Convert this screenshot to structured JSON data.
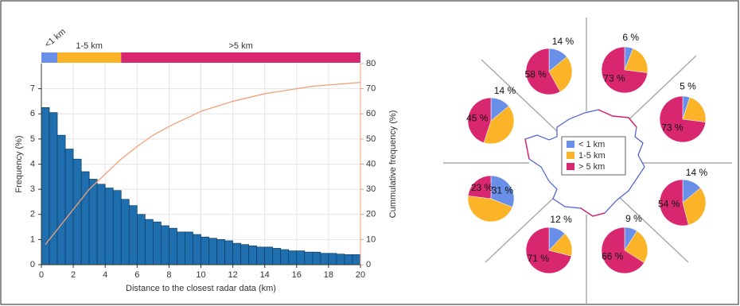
{
  "chart_data": [
    {
      "type": "histogram",
      "xlabel": "Distance to the closest radar data (km)",
      "ylabel": "Frequency (%)",
      "y2label": "Cummulative frequency (%)",
      "bins": [
        0,
        0.5,
        1,
        1.5,
        2,
        2.5,
        3,
        3.5,
        4,
        4.5,
        5,
        5.5,
        6,
        6.5,
        7,
        7.5,
        8,
        8.5,
        9,
        9.5,
        10,
        10.5,
        11,
        11.5,
        12,
        12.5,
        13,
        13.5,
        14,
        14.5,
        15,
        15.5,
        16,
        16.5,
        17,
        17.5,
        18,
        18.5,
        19,
        19.5,
        20
      ],
      "values": [
        6.25,
        6.05,
        5.15,
        4.6,
        4.2,
        3.7,
        3.4,
        3.2,
        3.05,
        2.95,
        2.6,
        2.35,
        2.0,
        1.8,
        1.7,
        1.55,
        1.45,
        1.3,
        1.3,
        1.2,
        1.1,
        1.05,
        1.0,
        0.95,
        0.85,
        0.8,
        0.75,
        0.7,
        0.7,
        0.65,
        0.6,
        0.55,
        0.55,
        0.5,
        0.5,
        0.45,
        0.45,
        0.42,
        0.4,
        0.4
      ],
      "color": "#1f6fae",
      "line": {
        "color": "#f0a07a",
        "axis": "y2",
        "x": [
          0.25,
          1,
          2,
          3,
          4,
          5,
          6,
          7,
          8,
          9,
          10,
          11,
          12,
          13,
          14,
          15,
          16,
          17,
          18,
          19,
          20
        ],
        "values": [
          8,
          14,
          22,
          30,
          36,
          42,
          47,
          51.5,
          55,
          58,
          61,
          63,
          65,
          66.5,
          68,
          69,
          70,
          71,
          71.5,
          72,
          72.5
        ]
      },
      "xlim": [
        0,
        20
      ],
      "xticks": [
        0,
        2,
        4,
        6,
        8,
        10,
        12,
        14,
        16,
        18,
        20
      ],
      "ylim": [
        0,
        8
      ],
      "yticks": [
        0,
        1,
        2,
        3,
        4,
        5,
        6,
        7
      ],
      "y2lim": [
        0,
        80
      ],
      "y2ticks": [
        0,
        10,
        20,
        30,
        40,
        50,
        60,
        70,
        80
      ],
      "grid": true,
      "range_bands": [
        {
          "label": "<1 km",
          "start": 0,
          "end": 1,
          "color": "#6a8fe8"
        },
        {
          "label": "1-5 km",
          "start": 1,
          "end": 5,
          "color": "#fbb327"
        },
        {
          "label": ">5 km",
          "start": 5,
          "end": 20,
          "color": "#d9276f"
        }
      ]
    },
    {
      "type": "pie",
      "legend": [
        "< 1 km",
        "1-5 km",
        "> 5 km"
      ],
      "colors": [
        "#6a8fe8",
        "#fbb327",
        "#d9276f"
      ],
      "pies": [
        {
          "values": [
            14,
            28,
            58
          ],
          "value_labels": [
            "14 %",
            null,
            "58 %"
          ]
        },
        {
          "values": [
            6,
            21,
            73
          ],
          "value_labels": [
            "6 %",
            null,
            "73 %"
          ]
        },
        {
          "values": [
            5,
            22,
            73
          ],
          "value_labels": [
            "5 %",
            null,
            "73 %"
          ]
        },
        {
          "values": [
            14,
            32,
            54
          ],
          "value_labels": [
            "14 %",
            null,
            "54 %"
          ]
        },
        {
          "values": [
            9,
            25,
            66
          ],
          "value_labels": [
            "9 %",
            null,
            "66 %"
          ]
        },
        {
          "values": [
            12,
            17,
            71
          ],
          "value_labels": [
            "12 %",
            null,
            "71 %"
          ]
        },
        {
          "values": [
            31,
            46,
            23
          ],
          "value_labels": [
            "31 %",
            null,
            "23 %"
          ]
        },
        {
          "values": [
            14,
            41,
            45
          ],
          "value_labels": [
            "14 %",
            null,
            "45 %"
          ]
        }
      ]
    }
  ]
}
